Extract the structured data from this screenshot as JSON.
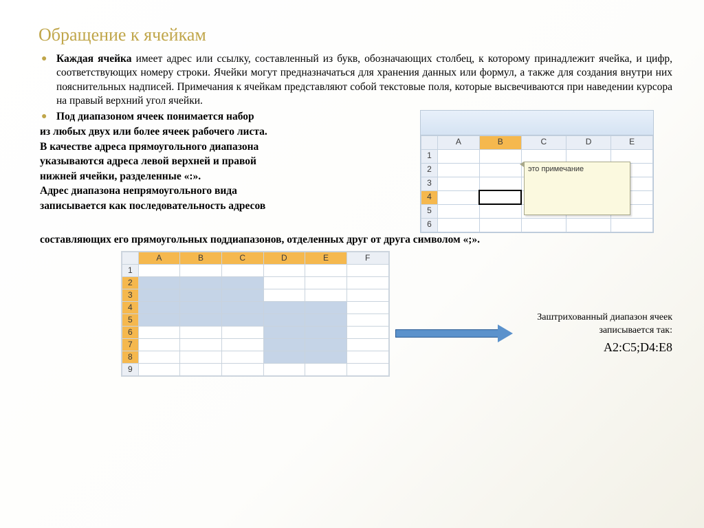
{
  "title": "Обращение к ячейкам",
  "para1_lead": "Каждая ячейка",
  "para1_rest": " имеет адрес или ссылку, составленный из букв, обозначающих столбец, к которому принадлежит ячейка, и цифр, соответствующих номеру строки. Ячейки могут предназначаться для хранения данных или формул, а также для создания внутри них пояснительных надписей. Примечания к ячейкам представляют собой текстовые поля, которые высвечиваются при наведении курсора на правый верхний угол ячейки.",
  "para2": "Под диапазоном ячеек понимается набор",
  "lines": [
    " из любых двух или более ячеек рабочего листа.",
    "В качестве адреса прямоугольного диапазона",
    " указываются адреса левой верхней и правой",
    "нижней ячейки, разделенные «:».",
    "Адрес диапазона непрямоугольного вида",
    "записывается как последовательность  адресов"
  ],
  "after_full": "составляющих его прямоугольных поддиапазонов, отделенных друг от друга символом «;».",
  "mini_excel": {
    "cols": [
      "A",
      "B",
      "C",
      "D",
      "E"
    ],
    "rows": [
      "1",
      "2",
      "3",
      "4",
      "5",
      "6"
    ],
    "selected_col": "B",
    "selected_row": "4",
    "comment": "это примечание",
    "ribbon_color": "#d5e3f3",
    "header_bg": "#e9eef6",
    "sel_header_bg": "#f5b84e"
  },
  "range_grid": {
    "cols": [
      "A",
      "B",
      "C",
      "D",
      "E",
      "F"
    ],
    "rows": [
      "1",
      "2",
      "3",
      "4",
      "5",
      "6",
      "7",
      "8",
      "9"
    ],
    "selected_cols": [
      "A",
      "B",
      "C",
      "D",
      "E"
    ],
    "selected_rows": [
      "2",
      "3",
      "4",
      "5",
      "6",
      "7",
      "8"
    ],
    "ranges": [
      {
        "r1": 2,
        "c1": 1,
        "r2": 5,
        "c2": 3
      },
      {
        "r1": 4,
        "c1": 4,
        "r2": 8,
        "c2": 5
      }
    ],
    "header_bg": "#ebeff5",
    "sel_header_bg": "#f5b84e",
    "sel_cell_bg": "#c5d4e7"
  },
  "caption_line1": "Заштрихованный диапазон ячеек",
  "caption_line2": "записывается  так:",
  "caption_addr": "A2:C5;D4:E8",
  "arrow_color": "#5b92cc"
}
